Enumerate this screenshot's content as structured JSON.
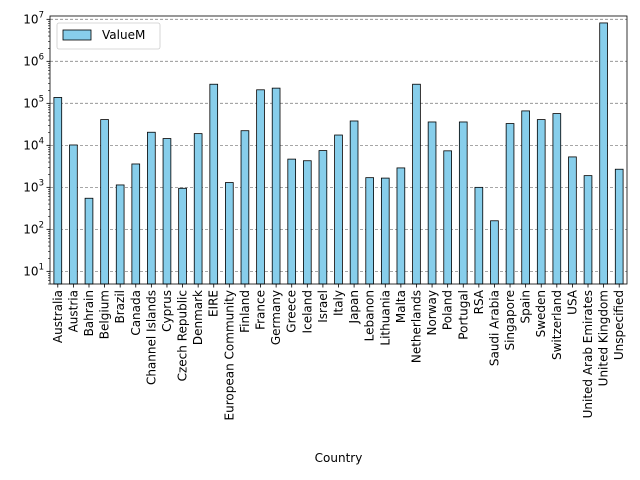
{
  "chart_data": {
    "type": "bar",
    "scale": "log",
    "xlabel": "Country",
    "ylabel": "",
    "legend": {
      "placement": "top-left",
      "entries": [
        "ValueM"
      ]
    },
    "grid": {
      "y": true,
      "style": "dashed",
      "color": "#888888"
    },
    "bar_color": "#87ceeb",
    "edge_color": "#000000",
    "ylim": [
      5,
      12000000
    ],
    "yticks": [
      {
        "value": 10,
        "base": "10",
        "exp": "1"
      },
      {
        "value": 100,
        "base": "10",
        "exp": "2"
      },
      {
        "value": 1000,
        "base": "10",
        "exp": "3"
      },
      {
        "value": 10000,
        "base": "10",
        "exp": "4"
      },
      {
        "value": 100000,
        "base": "10",
        "exp": "5"
      },
      {
        "value": 1000000,
        "base": "10",
        "exp": "6"
      },
      {
        "value": 10000000,
        "base": "10",
        "exp": "7"
      }
    ],
    "categories": [
      "Australia",
      "Austria",
      "Bahrain",
      "Belgium",
      "Brazil",
      "Canada",
      "Channel Islands",
      "Cyprus",
      "Czech Republic",
      "Denmark",
      "EIRE",
      "European Community",
      "Finland",
      "France",
      "Germany",
      "Greece",
      "Iceland",
      "Israel",
      "Italy",
      "Japan",
      "Lebanon",
      "Lithuania",
      "Malta",
      "Netherlands",
      "Norway",
      "Poland",
      "Portugal",
      "RSA",
      "Saudi Arabia",
      "Singapore",
      "Spain",
      "Sweden",
      "Switzerland",
      "USA",
      "United Arab Emirates",
      "United Kingdom",
      "Unspecified"
    ],
    "series": [
      {
        "name": "ValueM",
        "values": [
          138000,
          10200,
          550,
          41000,
          1140,
          3600,
          20500,
          14500,
          950,
          19000,
          285000,
          1300,
          22300,
          210000,
          230000,
          4700,
          4300,
          7500,
          17600,
          38000,
          1700,
          1660,
          2900,
          285000,
          36000,
          7400,
          36000,
          1000,
          160,
          33000,
          66000,
          41000,
          57000,
          5300,
          1900,
          8200000,
          2700
        ]
      }
    ]
  }
}
